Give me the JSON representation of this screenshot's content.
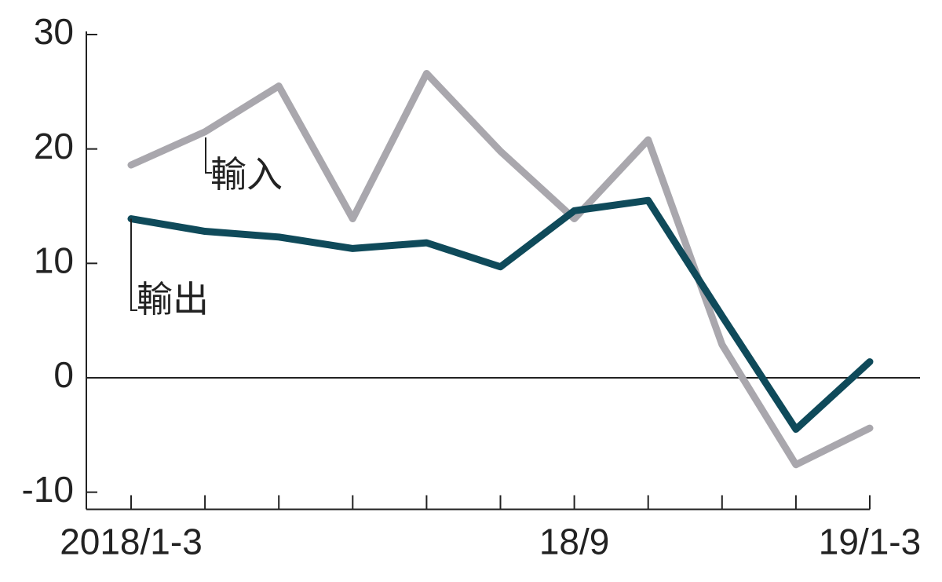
{
  "chart_data": {
    "type": "line",
    "categories": [
      "2018/1-3",
      null,
      null,
      null,
      null,
      null,
      "18/9",
      null,
      null,
      null,
      "19/1-3"
    ],
    "series": [
      {
        "name": "輸出",
        "color": "#0f4a5a",
        "values": [
          13.9,
          12.8,
          12.3,
          11.3,
          11.8,
          9.7,
          14.6,
          15.5,
          5.4,
          -4.5,
          1.4
        ]
      },
      {
        "name": "輸入",
        "color": "#a9a7ad",
        "values": [
          18.6,
          21.5,
          25.5,
          13.9,
          26.6,
          19.8,
          13.9,
          20.8,
          2.9,
          -7.6,
          -4.4
        ]
      }
    ],
    "ylim": [
      -11.5,
      30
    ],
    "yticks": [
      30,
      20,
      10,
      0,
      -10
    ]
  }
}
